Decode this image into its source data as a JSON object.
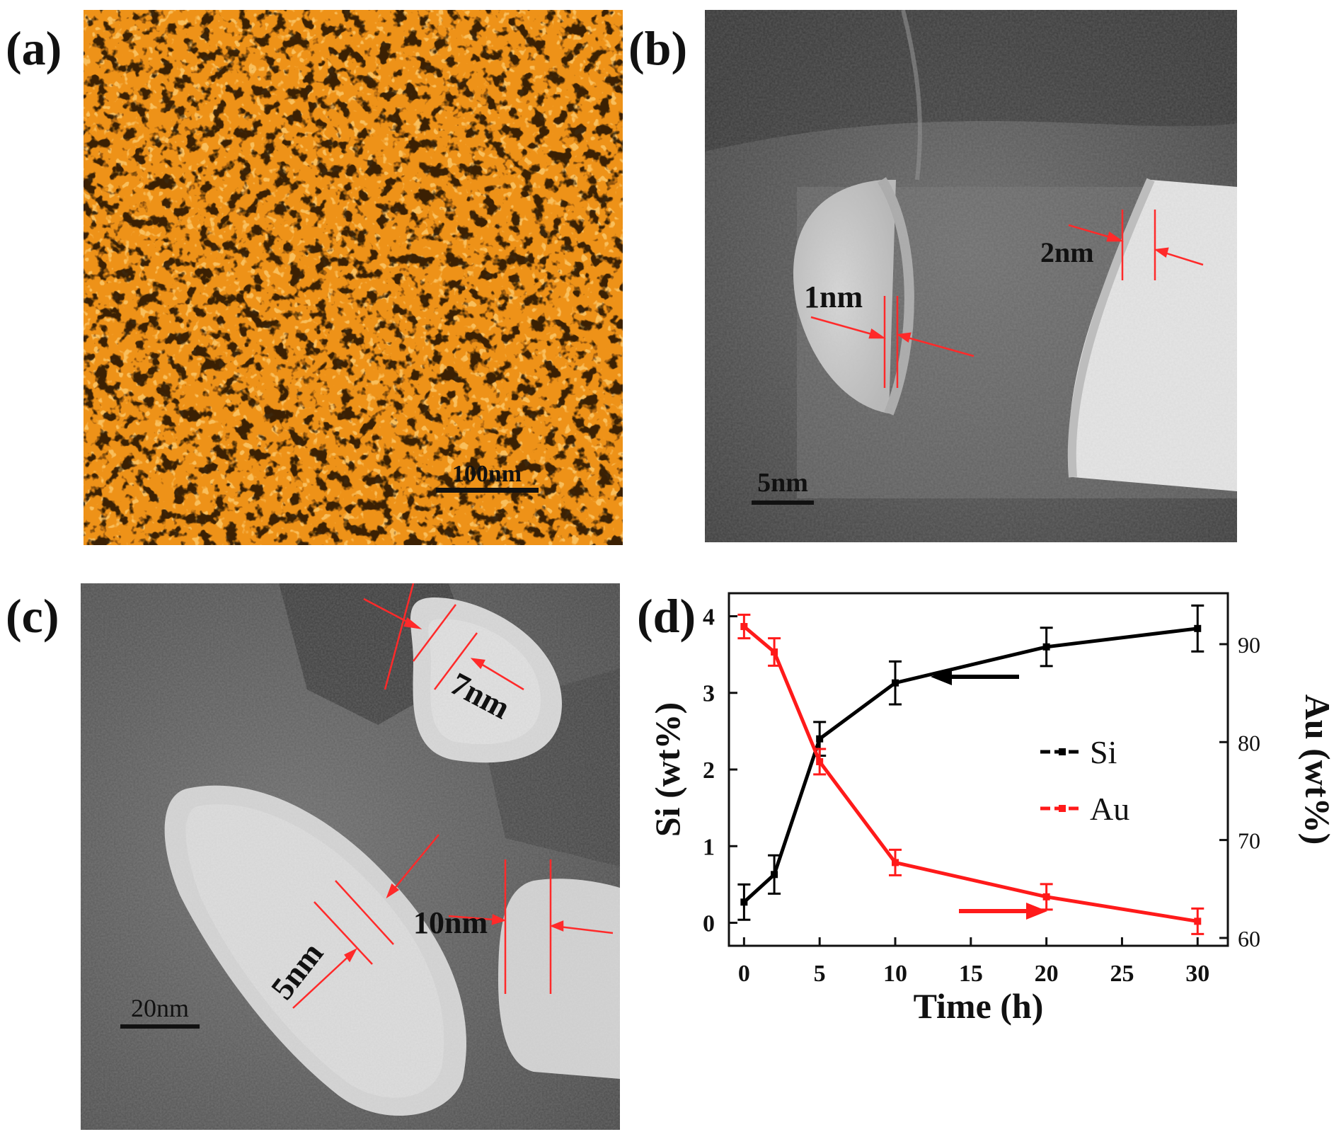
{
  "panels": {
    "a": {
      "label": "(a)",
      "scale_bar": "100nm"
    },
    "b": {
      "label": "(b)",
      "scale_bar": "5nm",
      "annotations": [
        "1nm",
        "2nm"
      ]
    },
    "c": {
      "label": "(c)",
      "scale_bar": "20nm",
      "annotations": [
        "7nm",
        "5nm",
        "10nm"
      ]
    },
    "d": {
      "label": "(d)"
    }
  },
  "colors": {
    "si": "#000000",
    "au": "#ff1a1a",
    "afm": "#f39c1a",
    "marker": "#ff2a2a"
  },
  "chart_data": {
    "type": "line",
    "xlabel": "Time (h)",
    "ylabel": "Si (wt%)",
    "y2label": "Au (wt%)",
    "xlim": [
      -1,
      32
    ],
    "ylim": [
      -0.3,
      4.3
    ],
    "y2lim": [
      59.2,
      95.2
    ],
    "xticks": [
      0,
      5,
      10,
      15,
      20,
      25,
      30
    ],
    "yticks": [
      0,
      1,
      2,
      3,
      4
    ],
    "y2ticks": [
      60,
      70,
      80,
      90
    ],
    "legend_position": "right",
    "series": [
      {
        "name": "Si",
        "axis": "left",
        "color": "#000000",
        "x": [
          0,
          2,
          5,
          10,
          20,
          30
        ],
        "y": [
          0.27,
          0.63,
          2.4,
          3.13,
          3.6,
          3.84
        ],
        "err": [
          0.23,
          0.25,
          0.22,
          0.28,
          0.25,
          0.3
        ]
      },
      {
        "name": "Au",
        "axis": "right",
        "color": "#ff1a1a",
        "x": [
          0,
          2,
          5,
          10,
          20,
          30
        ],
        "y": [
          91.8,
          89.2,
          78.0,
          67.7,
          64.2,
          61.7
        ],
        "err": [
          1.2,
          1.4,
          1.3,
          1.3,
          1.3,
          1.3
        ]
      }
    ],
    "arrows": [
      {
        "points_to": "left",
        "color": "#000000"
      },
      {
        "points_to": "right",
        "color": "#ff1a1a"
      }
    ]
  }
}
